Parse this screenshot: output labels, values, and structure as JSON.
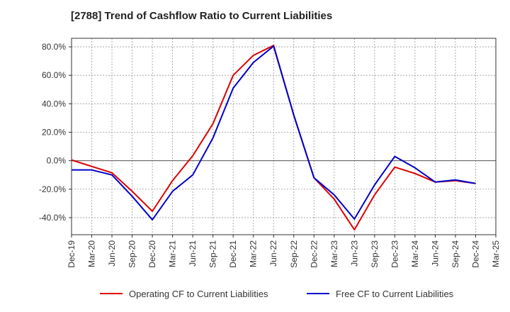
{
  "chart_data": {
    "type": "line",
    "title": "[2788]  Trend of Cashflow Ratio to Current Liabilities",
    "x": [
      "Dec-19",
      "Mar-20",
      "Jun-20",
      "Sep-20",
      "Dec-20",
      "Mar-21",
      "Jun-21",
      "Sep-21",
      "Dec-21",
      "Mar-22",
      "Jun-22",
      "Sep-22",
      "Dec-22",
      "Mar-23",
      "Jun-23",
      "Sep-23",
      "Dec-23",
      "Mar-24",
      "Jun-24",
      "Sep-24",
      "Dec-24",
      "Mar-25"
    ],
    "ylim": [
      -52,
      86
    ],
    "yticks": [
      80,
      60,
      40,
      20,
      0,
      -20,
      -40
    ],
    "ytick_labels": [
      "80.0%",
      "60.0%",
      "40.0%",
      "20.0%",
      "0.0%",
      "-20.0%",
      "-40.0%"
    ],
    "grid": true,
    "legend_position": "bottom",
    "series": [
      {
        "name": "Operating CF to Current Liabilities",
        "color": "#dd0000",
        "values": [
          0.5,
          -4.0,
          -8.5,
          -21.5,
          -35.5,
          -14.0,
          3.5,
          26.0,
          60.0,
          74.0,
          81.0,
          32.0,
          -12.0,
          -27.0,
          -48.5,
          -24.0,
          -4.5,
          -9.0,
          -15.0,
          -14.0,
          -16.0,
          null
        ]
      },
      {
        "name": "Free CF to Current Liabilities",
        "color": "#0000cc",
        "values": [
          -6.5,
          -6.5,
          -10.0,
          -25.0,
          -41.5,
          -21.5,
          -10.0,
          16.0,
          51.0,
          69.0,
          80.5,
          32.0,
          -12.0,
          -24.0,
          -41.0,
          -17.0,
          3.0,
          -5.0,
          -15.0,
          -13.5,
          -16.0,
          null
        ]
      }
    ]
  }
}
